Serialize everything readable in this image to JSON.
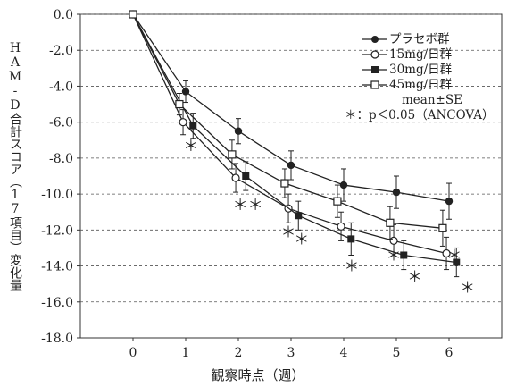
{
  "chart_data": {
    "type": "line",
    "title": "",
    "xlabel": "観察時点（週）",
    "ylabel": "HAM-D合計スコア（17項目）変化量",
    "x": [
      0,
      1,
      2,
      3,
      4,
      5,
      6
    ],
    "ylim": [
      -18.0,
      0.0
    ],
    "yticks": [
      0.0,
      -2.0,
      -4.0,
      -6.0,
      -8.0,
      -10.0,
      -12.0,
      -14.0,
      -16.0,
      -18.0
    ],
    "ytick_labels": [
      "0.0",
      "-2.0",
      "-4.0",
      "-6.0",
      "-8.0",
      "-10.0",
      "-12.0",
      "-14.0",
      "-16.0",
      "-18.0"
    ],
    "xtick_labels": [
      "0",
      "1",
      "2",
      "3",
      "4",
      "5",
      "6"
    ],
    "grid": "horizontal dashed",
    "legend_position": "top-right",
    "series": [
      {
        "name": "プラセボ群",
        "marker": "filled-circle",
        "x_offset": 0.0,
        "values": [
          0.0,
          -4.3,
          -6.5,
          -8.4,
          -9.5,
          -9.9,
          -10.4
        ],
        "se": [
          0,
          0.6,
          0.7,
          0.8,
          0.9,
          0.9,
          1.0
        ]
      },
      {
        "name": "15mg/日群",
        "marker": "open-circle",
        "x_offset": -0.05,
        "values": [
          0.0,
          -6.0,
          -9.1,
          -10.8,
          -11.8,
          -12.6,
          -13.3
        ],
        "se": [
          0,
          0.7,
          0.8,
          0.8,
          0.8,
          0.9,
          0.9
        ]
      },
      {
        "name": "30mg/日群",
        "marker": "filled-square",
        "x_offset": 0.14,
        "values": [
          0.0,
          -6.2,
          -9.0,
          -11.2,
          -12.5,
          -13.4,
          -13.8
        ],
        "se": [
          0,
          0.7,
          0.8,
          0.8,
          0.9,
          0.8,
          0.8
        ]
      },
      {
        "name": "45mg/日群",
        "marker": "open-square",
        "x_offset": -0.12,
        "values": [
          0.0,
          -5.0,
          -7.8,
          -9.4,
          -10.4,
          -11.6,
          -11.9
        ],
        "se": [
          0,
          0.6,
          0.8,
          0.8,
          0.9,
          0.9,
          1.0
        ]
      }
    ],
    "annotations": [
      {
        "text": "＊",
        "x": 1.1,
        "y": -7.3
      },
      {
        "text": "＊＊",
        "x": 2.18,
        "y": -10.6
      },
      {
        "text": "＊",
        "x": 2.95,
        "y": -12.1
      },
      {
        "text": "＊",
        "x": 3.2,
        "y": -12.5
      },
      {
        "text": "＊",
        "x": 4.15,
        "y": -14.0
      },
      {
        "text": "＊",
        "x": 4.95,
        "y": -13.4
      },
      {
        "text": "＊",
        "x": 5.35,
        "y": -14.6
      },
      {
        "text": "＊",
        "x": 6.1,
        "y": -13.4
      },
      {
        "text": "＊",
        "x": 6.35,
        "y": -15.2
      }
    ]
  },
  "legend_note": {
    "stat": "mean±SE",
    "significance": "＊：p＜0.05（ANCOVA）"
  }
}
